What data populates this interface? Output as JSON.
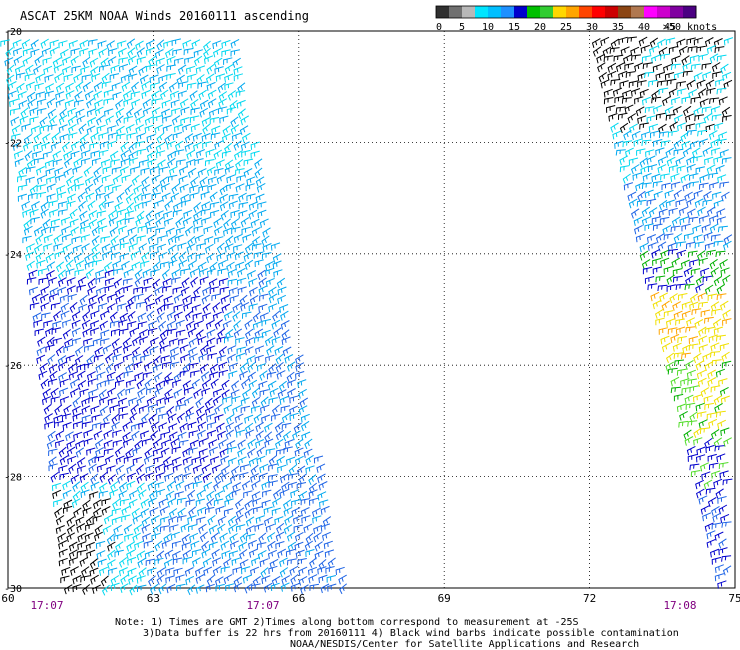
{
  "title": "ASCAT 25KM NOAA Winds 20160111 ascending",
  "colorbar": {
    "colors": [
      "#303030",
      "#707070",
      "#b8b8b8",
      "#00e5ff",
      "#00bfff",
      "#1e90ff",
      "#0000cd",
      "#00c000",
      "#32cd32",
      "#ffd700",
      "#ffa500",
      "#ff4500",
      "#ff0000",
      "#cc0000",
      "#8b4513",
      "#b07850",
      "#ff00ff",
      "#cc00cc",
      "#8000a0",
      "#4b0082"
    ],
    "labels": [
      "0",
      "5",
      "10",
      "15",
      "20",
      "25",
      "30",
      "35",
      "40",
      "45",
      ">50 knots"
    ]
  },
  "map": {
    "lon_ticks": [
      "60",
      "63",
      "66",
      "69",
      "72",
      "75"
    ],
    "lat_ticks": [
      "-20",
      "-22",
      "-24",
      "-26",
      "-28",
      "-30"
    ],
    "lon_range": [
      60,
      75
    ],
    "lat_range": [
      -30,
      -20
    ],
    "swath_times": [
      "17:07",
      "17:07",
      "17:08"
    ]
  },
  "notes": {
    "line1": "Note: 1) Times are GMT 2)Times along bottom correspond to measurement at -25S",
    "line2": "3)Data buffer is 22 hrs from 20160111 4) Black wind barbs indicate possible contamination",
    "line3": "NOAA/NESDIS/Center for Satellite Applications and Research"
  },
  "wind_colors": {
    "black": "#000000",
    "cyan": "#00d8f0",
    "lightblue": "#00a8f0",
    "blue": "#1e64e6",
    "darkblue": "#0000cd",
    "green": "#00b000",
    "lime": "#50dc28",
    "yellow": "#f0e000",
    "orange": "#ffa500"
  }
}
